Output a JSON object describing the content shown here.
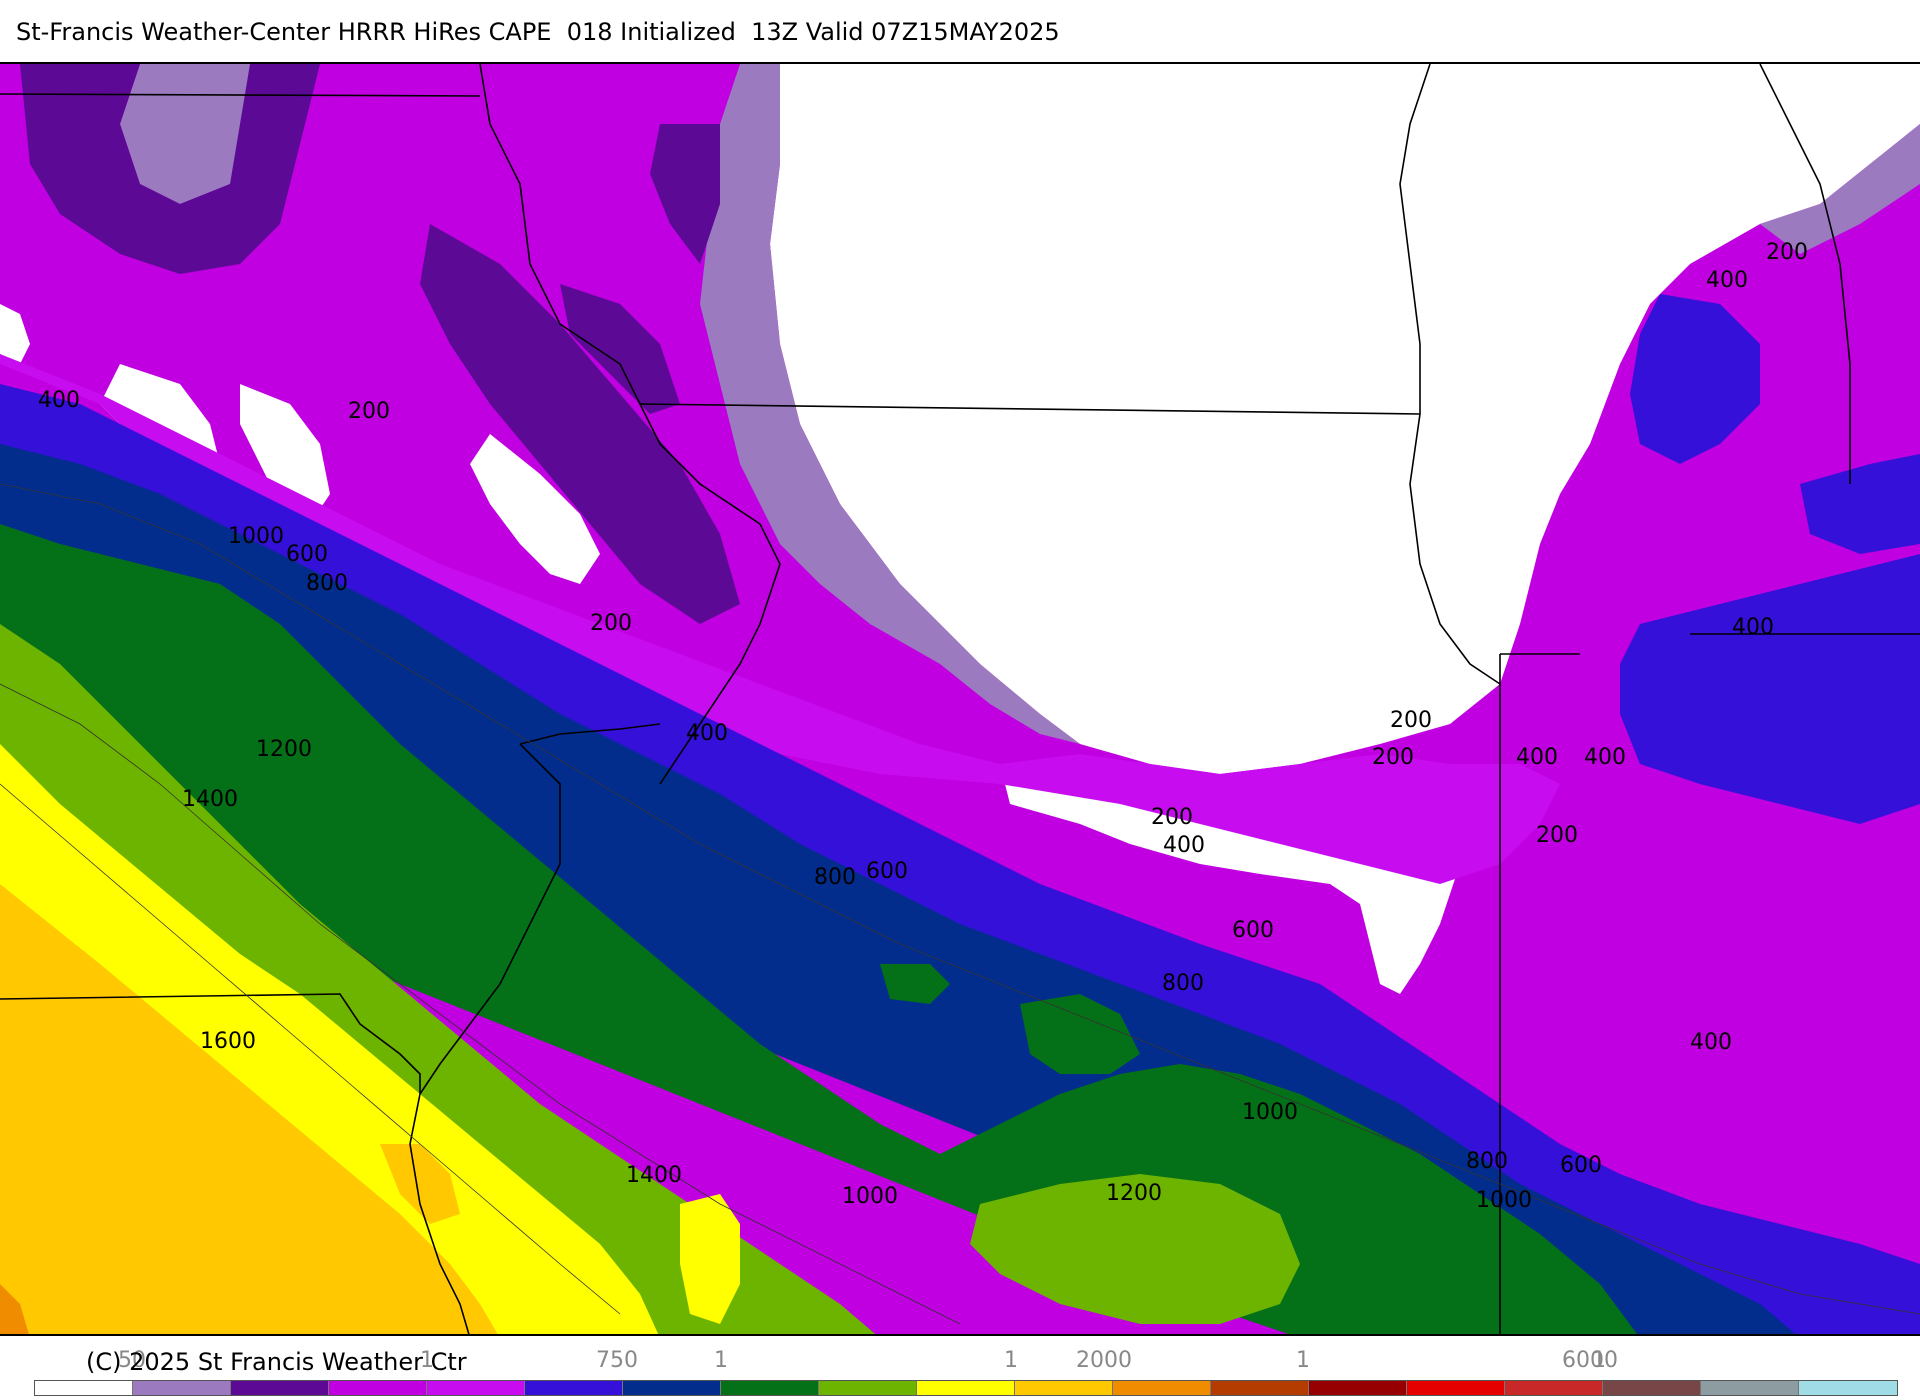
{
  "header": {
    "title": "St-Francis Weather-Center HRRR HiRes CAPE  018 Initialized  13Z Valid 07Z15MAY2025"
  },
  "footer": {
    "copyright": "(C) 2025 St Francis Weather Ctr",
    "tick_labels": [
      "50",
      "1",
      "750",
      "1",
      "1",
      "2000",
      "1",
      "6000",
      "1"
    ]
  },
  "colors": {
    "ocean_white": "#ffffff",
    "light_purple": "#9c7ac0",
    "dark_purple": "#5c0a96",
    "magenta": "#c000e0",
    "bright_magenta": "#c80cf0",
    "indigo": "#3410d8",
    "navy": "#022d8c",
    "dark_green": "#047018",
    "yellow_green": "#6cb400",
    "yellow": "#ffff00",
    "orange_yellow": "#ffc800",
    "orange": "#f08c00"
  },
  "colorbar": [
    "#ffffff",
    "#9c7ac0",
    "#5c0a96",
    "#c000e0",
    "#c80cf0",
    "#3410d8",
    "#022d8c",
    "#047018",
    "#6cb400",
    "#ffff00",
    "#ffc800",
    "#f08c00",
    "#b43c00",
    "#960000",
    "#e60000",
    "#c82828",
    "#784646",
    "#8c9ca0",
    "#a0dce6"
  ],
  "contour_labels": [
    "400",
    "200",
    "1000",
    "600",
    "800",
    "200",
    "400",
    "1200",
    "1400",
    "1600",
    "800",
    "600",
    "200",
    "400",
    "200",
    "200",
    "400",
    "400",
    "200",
    "400",
    "400",
    "200",
    "600",
    "800",
    "1000",
    "1000",
    "1400",
    "1200",
    "800",
    "600",
    "1000",
    "400"
  ]
}
